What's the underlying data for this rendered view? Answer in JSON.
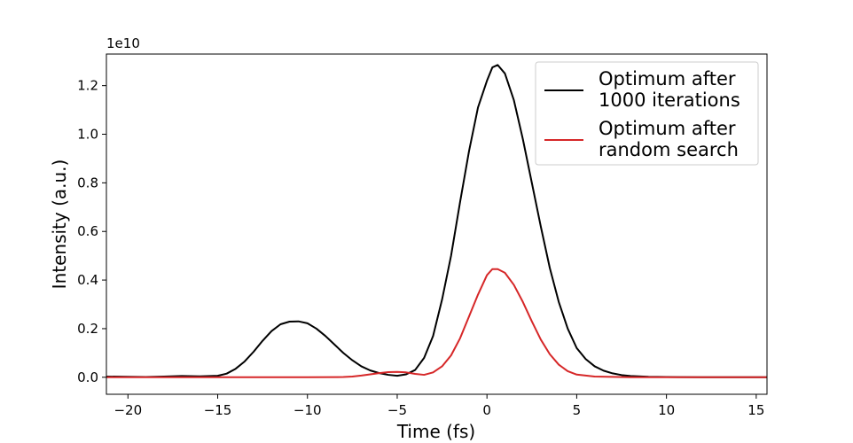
{
  "chart_data": {
    "type": "line",
    "xlabel": "Time (fs)",
    "ylabel": "Intensity (a.u.)",
    "offset_label": "1e10",
    "xlim": [
      -21.2,
      15.6
    ],
    "ylim": [
      -0.07,
      1.33
    ],
    "xticks": [
      -20,
      -15,
      -10,
      -5,
      0,
      5,
      10,
      15
    ],
    "xtick_labels": [
      "−20",
      "−15",
      "−10",
      "−5",
      "0",
      "5",
      "10",
      "15"
    ],
    "yticks": [
      0.0,
      0.2,
      0.4,
      0.6,
      0.8,
      1.0,
      1.2
    ],
    "ytick_labels": [
      "0.0",
      "0.2",
      "0.4",
      "0.6",
      "0.8",
      "1.0",
      "1.2"
    ],
    "legend_position": "upper-right",
    "series": [
      {
        "name_lines": [
          "Optimum after",
          "1000 iterations"
        ],
        "color": "#000000",
        "x": [
          -21.2,
          -20,
          -19,
          -18,
          -17,
          -16,
          -15,
          -14.5,
          -14,
          -13.5,
          -13,
          -12.5,
          -12,
          -11.5,
          -11,
          -10.5,
          -10,
          -9.5,
          -9,
          -8.5,
          -8,
          -7.5,
          -7,
          -6.5,
          -6,
          -5.5,
          -5,
          -4.5,
          -4,
          -3.5,
          -3,
          -2.5,
          -2,
          -1.5,
          -1,
          -0.5,
          0,
          0.3,
          0.6,
          1,
          1.5,
          2,
          2.5,
          3,
          3.5,
          4,
          4.5,
          5,
          5.5,
          6,
          6.5,
          7,
          7.5,
          8,
          9,
          10,
          12,
          15.6
        ],
        "y": [
          0.003,
          0.002,
          0.001,
          0.003,
          0.005,
          0.004,
          0.006,
          0.015,
          0.035,
          0.065,
          0.105,
          0.15,
          0.19,
          0.218,
          0.229,
          0.23,
          0.222,
          0.2,
          0.17,
          0.135,
          0.1,
          0.07,
          0.045,
          0.028,
          0.017,
          0.01,
          0.006,
          0.012,
          0.03,
          0.08,
          0.17,
          0.32,
          0.5,
          0.72,
          0.93,
          1.11,
          1.22,
          1.275,
          1.285,
          1.25,
          1.14,
          0.98,
          0.8,
          0.62,
          0.45,
          0.31,
          0.2,
          0.12,
          0.075,
          0.045,
          0.027,
          0.016,
          0.009,
          0.005,
          0.002,
          0.001,
          0.0,
          0.0
        ]
      },
      {
        "name_lines": [
          "Optimum after",
          "random search"
        ],
        "color": "#d62728",
        "x": [
          -21.2,
          -15,
          -10,
          -8,
          -7.5,
          -7,
          -6.5,
          -6,
          -5.5,
          -5,
          -4.5,
          -4,
          -3.5,
          -3,
          -2.5,
          -2,
          -1.5,
          -1,
          -0.5,
          0,
          0.3,
          0.6,
          1,
          1.5,
          2,
          2.5,
          3,
          3.5,
          4,
          4.5,
          5,
          6,
          8,
          15.6
        ],
        "y": [
          0.0,
          0.0,
          0.0,
          0.001,
          0.003,
          0.007,
          0.012,
          0.017,
          0.021,
          0.022,
          0.02,
          0.014,
          0.01,
          0.02,
          0.045,
          0.09,
          0.16,
          0.25,
          0.34,
          0.42,
          0.445,
          0.445,
          0.43,
          0.38,
          0.31,
          0.23,
          0.155,
          0.095,
          0.052,
          0.025,
          0.011,
          0.003,
          0.0,
          0.0
        ]
      }
    ]
  }
}
